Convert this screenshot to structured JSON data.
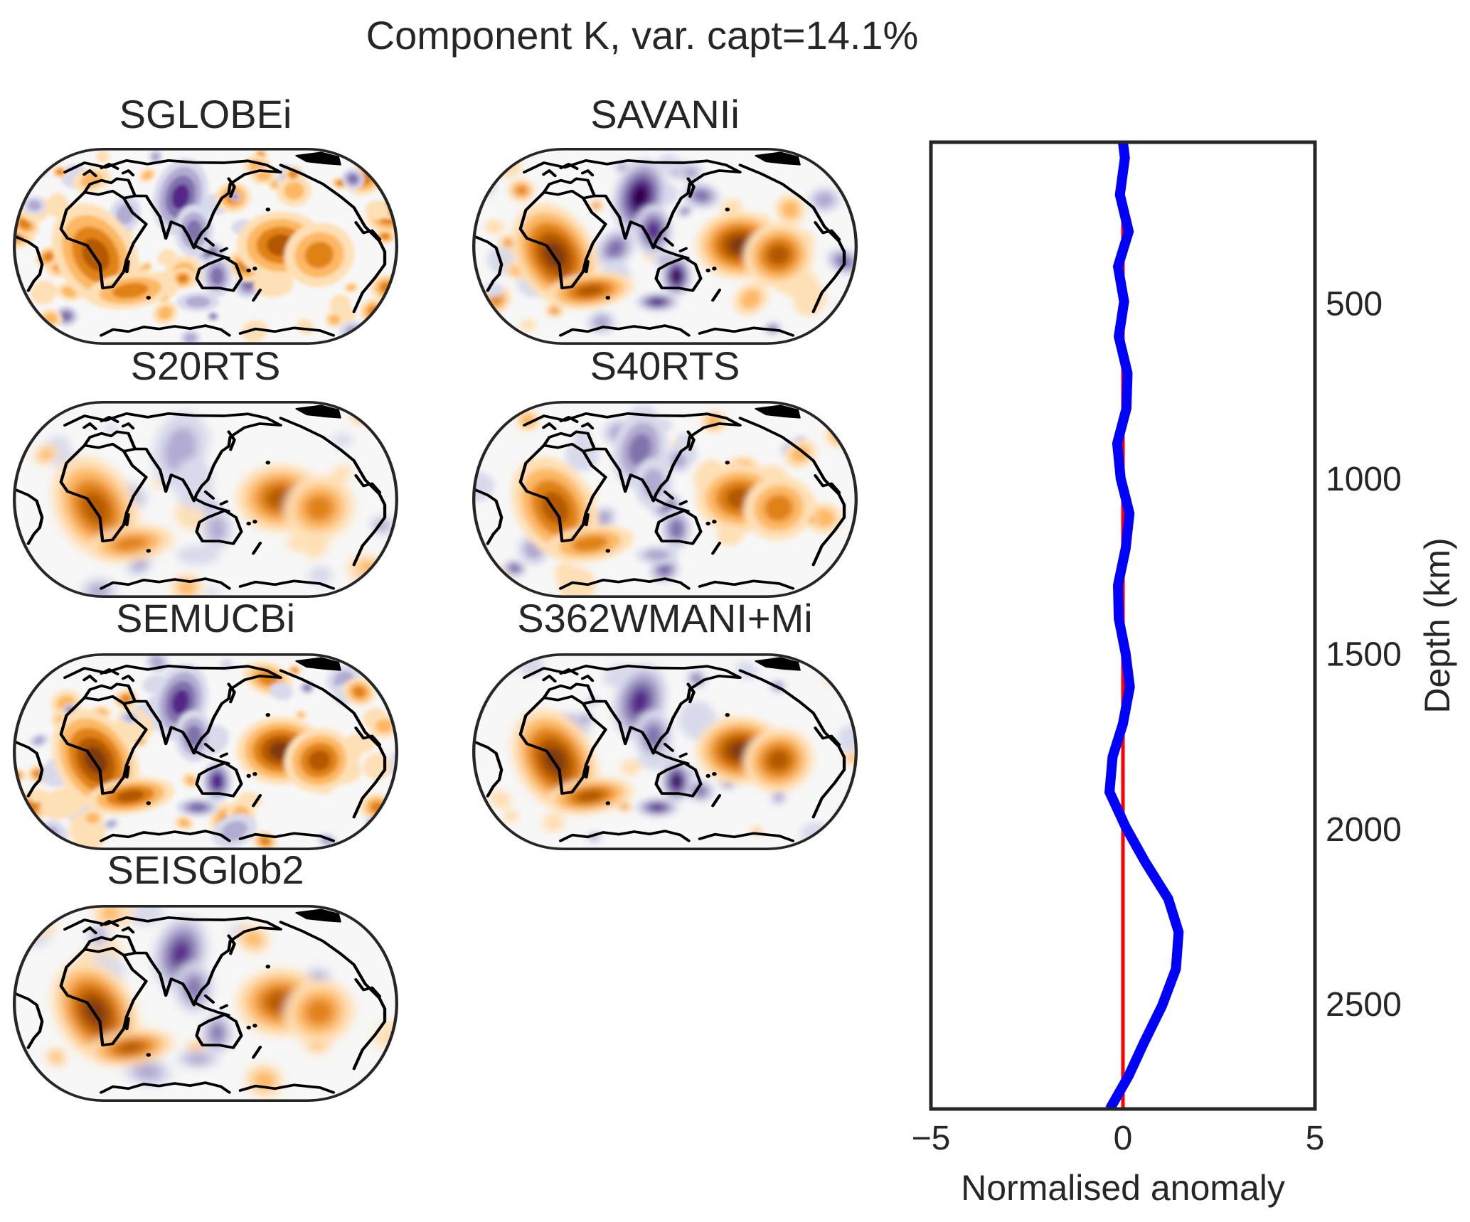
{
  "figure": {
    "title": "Component K, var. capt=14.1%"
  },
  "maps": [
    {
      "title": "SGLOBEi"
    },
    {
      "title": "SAVANIi"
    },
    {
      "title": "S20RTS"
    },
    {
      "title": "S40RTS"
    },
    {
      "title": "SEMUCBi"
    },
    {
      "title": "S362WMANI+Mi"
    },
    {
      "title": "SEISGlob2"
    }
  ],
  "map_colormap": {
    "name": "PuOr",
    "brown": [
      "#fee0b6",
      "#fdb863",
      "#e08214",
      "#b35806",
      "#7f3b08"
    ],
    "purple": [
      "#d8daeb",
      "#b2abd2",
      "#8073ac",
      "#542788",
      "#2d004b"
    ],
    "neutral": "#f7f7f7"
  },
  "chart_data": {
    "type": "line",
    "title": "",
    "xlabel": "Normalised anomaly",
    "ylabel": "Depth (km)",
    "xlim": [
      -5,
      5
    ],
    "ylim": [
      2800,
      40
    ],
    "y_inverted": true,
    "y_axis_side": "right",
    "grid": false,
    "x_ticks": [
      -5,
      0,
      5
    ],
    "x_tick_labels": [
      "−5",
      "0",
      "5"
    ],
    "y_ticks": [
      500,
      1000,
      1500,
      2000,
      2500
    ],
    "y_tick_labels": [
      "500",
      "1000",
      "1500",
      "2000",
      "2500"
    ],
    "series": [
      {
        "name": "zero reference",
        "color": "#ff0000",
        "depth": [
          40,
          2800
        ],
        "values": [
          0,
          0
        ]
      },
      {
        "name": "component K profile",
        "color": "#0000ff",
        "depth": [
          40,
          85,
          190,
          295,
          395,
          495,
          595,
          700,
          800,
          900,
          1000,
          1100,
          1200,
          1305,
          1400,
          1500,
          1595,
          1700,
          1795,
          1895,
          1995,
          2095,
          2200,
          2295,
          2400,
          2505,
          2610,
          2705,
          2800
        ],
        "values": [
          0.0,
          0.05,
          -0.08,
          0.15,
          -0.13,
          0.03,
          -0.11,
          0.12,
          0.09,
          -0.15,
          -0.06,
          0.17,
          0.07,
          -0.13,
          -0.11,
          0.07,
          0.18,
          0.0,
          -0.27,
          -0.35,
          0.07,
          0.58,
          1.18,
          1.45,
          1.38,
          1.02,
          0.55,
          0.15,
          -0.34
        ]
      }
    ]
  }
}
